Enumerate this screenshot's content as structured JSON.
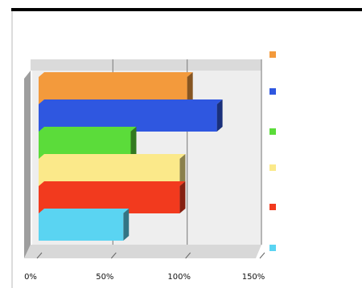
{
  "chart_data": {
    "type": "bar",
    "orientation": "horizontal",
    "style": "3d",
    "title": "",
    "xlabel": "",
    "ylabel": "",
    "xlim": [
      0,
      150
    ],
    "x_ticks": [
      0,
      50,
      100,
      150
    ],
    "x_tick_labels": [
      "0%",
      "50%",
      "100%",
      "150%"
    ],
    "grid": true,
    "legend_position": "right",
    "series": [
      {
        "name": "",
        "value": 100,
        "label": "",
        "color": "#f39a3c"
      },
      {
        "name": "",
        "value": 120,
        "label": "",
        "color": "#2f57e0"
      },
      {
        "name": "",
        "value": 62,
        "label": "",
        "color": "#5bdc3a"
      },
      {
        "name": "",
        "value": 95,
        "label": "",
        "color": "#fbe98a"
      },
      {
        "name": "",
        "value": 95,
        "label": "",
        "color": "#f23a1e"
      },
      {
        "name": "",
        "value": 57,
        "label": "",
        "color": "#5ad4f2"
      }
    ]
  }
}
